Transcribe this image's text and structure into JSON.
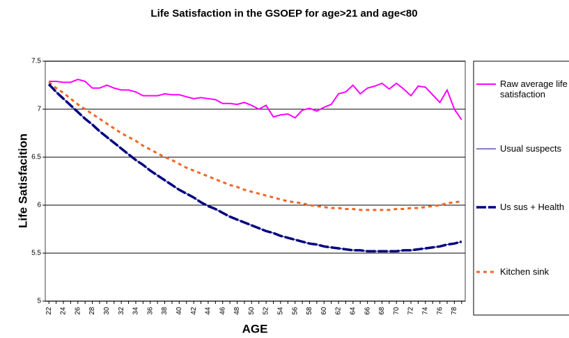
{
  "chart_data": {
    "type": "line",
    "title": "Life Satisfaction in the GSOEP for age>21 and age<80",
    "x_label": "AGE",
    "y_label": "Life Satisfacition",
    "categories": [
      "22",
      null,
      "24",
      null,
      "26",
      null,
      "28",
      null,
      "30",
      null,
      "32",
      null,
      "34",
      null,
      "36",
      null,
      "38",
      null,
      "40",
      null,
      "42",
      null,
      "44",
      null,
      "46",
      null,
      "48",
      null,
      "50",
      null,
      "52",
      null,
      "54",
      null,
      "56",
      null,
      "58",
      null,
      "60",
      null,
      "62",
      null,
      "64",
      null,
      "66",
      null,
      "68",
      null,
      "70",
      null,
      "72",
      null,
      "74",
      null,
      "76",
      null,
      "78",
      null
    ],
    "ylim": [
      5,
      7.5
    ],
    "yticks": [
      5,
      5.5,
      6,
      6.5,
      7,
      7.5
    ],
    "grid": true,
    "series": [
      {
        "name": "Raw average life satisfaction",
        "color": "#ff00ff",
        "line_width": 2,
        "dash": "solid",
        "values": [
          7.29,
          7.29,
          7.28,
          7.28,
          7.31,
          7.29,
          7.22,
          7.22,
          7.25,
          7.22,
          7.2,
          7.2,
          7.18,
          7.14,
          7.14,
          7.14,
          7.16,
          7.15,
          7.15,
          7.13,
          7.11,
          7.12,
          7.11,
          7.1,
          7.06,
          7.06,
          7.05,
          7.07,
          7.04,
          7.0,
          7.04,
          6.92,
          6.94,
          6.95,
          6.91,
          6.99,
          7.01,
          6.98,
          7.02,
          7.05,
          7.16,
          7.18,
          7.25,
          7.16,
          7.22,
          7.24,
          7.27,
          7.21,
          7.27,
          7.21,
          7.14,
          7.24,
          7.23,
          7.15,
          7.07,
          7.2,
          7.0,
          6.89
        ]
      },
      {
        "name": "Usual suspects",
        "color": "#000080",
        "line_width": 1,
        "dash": "solid",
        "values": [
          7.26,
          7.18,
          7.11,
          7.04,
          6.97,
          6.9,
          6.84,
          6.77,
          6.71,
          6.65,
          6.59,
          6.53,
          6.47,
          6.42,
          6.36,
          6.31,
          6.26,
          6.21,
          6.16,
          6.12,
          6.08,
          6.03,
          5.99,
          5.96,
          5.92,
          5.88,
          5.85,
          5.82,
          5.79,
          5.76,
          5.73,
          5.71,
          5.68,
          5.66,
          5.64,
          5.62,
          5.6,
          5.59,
          5.57,
          5.56,
          5.55,
          5.54,
          5.53,
          5.53,
          5.52,
          5.52,
          5.52,
          5.52,
          5.52,
          5.53,
          5.53,
          5.54,
          5.55,
          5.56,
          5.57,
          5.59,
          5.6,
          5.62
        ]
      },
      {
        "name": "Us sus + Health",
        "color": "#000080",
        "line_width": 3.5,
        "dash": "long",
        "values": [
          7.26,
          7.18,
          7.11,
          7.04,
          6.97,
          6.9,
          6.84,
          6.77,
          6.71,
          6.65,
          6.59,
          6.53,
          6.47,
          6.42,
          6.36,
          6.31,
          6.26,
          6.21,
          6.16,
          6.12,
          6.08,
          6.03,
          5.99,
          5.96,
          5.92,
          5.88,
          5.85,
          5.82,
          5.79,
          5.76,
          5.73,
          5.71,
          5.68,
          5.66,
          5.64,
          5.62,
          5.6,
          5.59,
          5.57,
          5.56,
          5.55,
          5.54,
          5.53,
          5.53,
          5.52,
          5.52,
          5.52,
          5.52,
          5.52,
          5.53,
          5.53,
          5.54,
          5.55,
          5.56,
          5.57,
          5.59,
          5.6,
          5.62
        ]
      },
      {
        "name": "Kitchen sink",
        "color": "#f26522",
        "line_width": 3,
        "dash": "short",
        "values": [
          7.28,
          7.22,
          7.17,
          7.11,
          7.05,
          7.0,
          6.95,
          6.9,
          6.85,
          6.8,
          6.75,
          6.71,
          6.67,
          6.62,
          6.58,
          6.54,
          6.5,
          6.47,
          6.43,
          6.39,
          6.36,
          6.33,
          6.3,
          6.27,
          6.24,
          6.21,
          6.19,
          6.16,
          6.14,
          6.12,
          6.1,
          6.08,
          6.06,
          6.04,
          6.03,
          6.02,
          6.0,
          5.99,
          5.98,
          5.97,
          5.97,
          5.96,
          5.96,
          5.95,
          5.95,
          5.95,
          5.95,
          5.95,
          5.96,
          5.96,
          5.97,
          5.97,
          5.98,
          5.99,
          6.0,
          6.02,
          6.03,
          6.04
        ]
      }
    ]
  }
}
